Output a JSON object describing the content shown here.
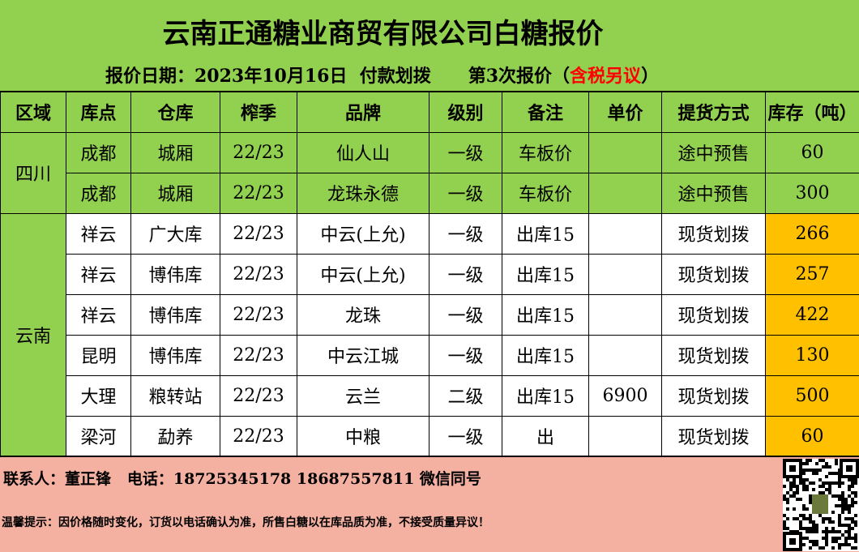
{
  "title": "云南正通糖业商贸有限公司白糖报价",
  "subtitle": {
    "prefix": "报价日期：2023年10月16日  付款划拨      第3次报价（",
    "red": "含税另议",
    "suffix": "）"
  },
  "colors": {
    "background": "#92d050",
    "highlight": "#ffc000",
    "footer": "#f4b0a0",
    "red": "#ff0000"
  },
  "headers": [
    "区域",
    "库点",
    "仓库",
    "榨季",
    "品牌",
    "级别",
    "备注",
    "单价",
    "提货方式",
    "库存（吨）"
  ],
  "regions": [
    {
      "name": "四川",
      "rows": 2
    },
    {
      "name": "云南",
      "rows": 6
    }
  ],
  "rows": [
    [
      "成都",
      "城厢",
      "22/23",
      "仙人山",
      "一级",
      "车板价",
      "",
      "途中预售",
      "60"
    ],
    [
      "成都",
      "城厢",
      "22/23",
      "龙珠永德",
      "一级",
      "车板价",
      "",
      "途中预售",
      "300"
    ],
    [
      "祥云",
      "广大库",
      "22/23",
      "中云(上允)",
      "一级",
      "出库15",
      "",
      "现货划拨",
      "266"
    ],
    [
      "祥云",
      "博伟库",
      "22/23",
      "中云(上允)",
      "一级",
      "出库15",
      "",
      "现货划拨",
      "257"
    ],
    [
      "祥云",
      "博伟库",
      "22/23",
      "龙珠",
      "一级",
      "出库15",
      "",
      "现货划拨",
      "422"
    ],
    [
      "昆明",
      "博伟库",
      "22/23",
      "中云江城",
      "一级",
      "出库15",
      "",
      "现货划拨",
      "130"
    ],
    [
      "大理",
      "粮转站",
      "22/23",
      "云兰",
      "二级",
      "出库15",
      "6900",
      "现货划拨",
      "500"
    ],
    [
      "梁河",
      "勐养",
      "22/23",
      "中粮",
      "一级",
      "出",
      "",
      "现货划拨",
      "60"
    ]
  ],
  "footer": {
    "contact": "联系人：董正锋   电话：18725345178 18687557811 微信同号",
    "tip": "温馨提示：因价格随时变化，订货以电话确认为准，所售白糖以在库品质为准，不接受质量异议！"
  },
  "qr_icon": "qr-code-icon"
}
